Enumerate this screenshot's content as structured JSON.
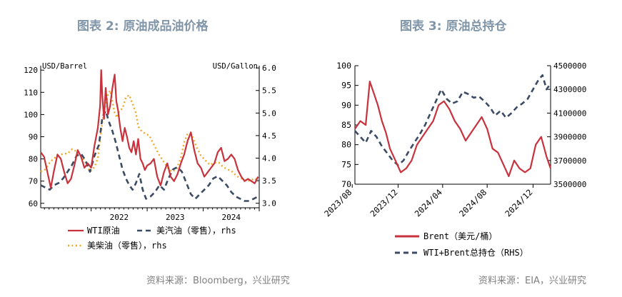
{
  "left": {
    "title": "图表 2:   原油成品油价格",
    "source": "资料来源：Bloomberg，兴业研究"
  },
  "right": {
    "title": "图表 3:   原油总持仓",
    "source": "资料来源：EIA，兴业研究"
  },
  "colors": {
    "wti": "#c8323c",
    "gasoline": "#3c4b64",
    "diesel": "#f0a828",
    "brent": "#c8323c",
    "holdings": "#3c4b64",
    "title": "#8095a8"
  },
  "chart_data": [
    {
      "type": "line",
      "title": "原油成品油价格",
      "y_left_unit": "USD/Barrel",
      "y_right_unit": "USD/Gallon",
      "ylim_left": [
        58,
        122
      ],
      "ylim_right": [
        2.9,
        6.05
      ],
      "y_left_ticks": [
        "120",
        "110",
        "100",
        "90",
        "80",
        "70",
        "60"
      ],
      "y_right_ticks": [
        "6.0",
        "5.5",
        "5.0",
        "4.5",
        "4.0",
        "3.5",
        "3.0"
      ],
      "x_range": [
        2021.1,
        2025.0
      ],
      "x_tick_labels": [
        {
          "label": "2022",
          "x": 2022.0
        },
        {
          "label": "2023",
          "x": 2023.0
        },
        {
          "label": "2024",
          "x": 2024.0
        }
      ],
      "series": [
        {
          "name": "WTI原油",
          "axis": "left",
          "style": "solid",
          "x": [
            2021.1,
            2021.16,
            2021.22,
            2021.28,
            2021.34,
            2021.4,
            2021.46,
            2021.52,
            2021.58,
            2021.64,
            2021.7,
            2021.76,
            2021.82,
            2021.88,
            2021.94,
            2022.0,
            2022.06,
            2022.12,
            2022.16,
            2022.18,
            2022.2,
            2022.23,
            2022.26,
            2022.3,
            2022.34,
            2022.38,
            2022.42,
            2022.45,
            2022.48,
            2022.52,
            2022.56,
            2022.6,
            2022.64,
            2022.68,
            2022.72,
            2022.76,
            2022.8,
            2022.84,
            2022.88,
            2022.92,
            2022.96,
            2023.0,
            2023.06,
            2023.12,
            2023.18,
            2023.24,
            2023.3,
            2023.36,
            2023.42,
            2023.48,
            2023.54,
            2023.6,
            2023.66,
            2023.72,
            2023.78,
            2023.84,
            2023.9,
            2023.96,
            2024.02,
            2024.08,
            2024.14,
            2024.2,
            2024.26,
            2024.32,
            2024.38,
            2024.44,
            2024.5,
            2024.56,
            2024.62,
            2024.68,
            2024.74,
            2024.8,
            2024.86,
            2024.92,
            2024.98
          ],
          "values": [
            83,
            81,
            74,
            67,
            75,
            82,
            80,
            74,
            69,
            71,
            77,
            84,
            81,
            76,
            78,
            76,
            86,
            94,
            104,
            120,
            108,
            98,
            112,
            100,
            104,
            112,
            118,
            106,
            102,
            94,
            88,
            94,
            90,
            85,
            83,
            88,
            82,
            89,
            80,
            78,
            75,
            77,
            78,
            80,
            72,
            68,
            74,
            78,
            72,
            70,
            73,
            78,
            82,
            88,
            92,
            84,
            78,
            76,
            72,
            74,
            76,
            78,
            83,
            85,
            79,
            80,
            82,
            80,
            75,
            72,
            70,
            71,
            70,
            69,
            72
          ]
        },
        {
          "name": "美汽油（零售），rhs",
          "axis": "right",
          "style": "dashed",
          "x": [
            2021.1,
            2021.18,
            2021.26,
            2021.34,
            2021.42,
            2021.5,
            2021.58,
            2021.66,
            2021.74,
            2021.82,
            2021.9,
            2021.98,
            2022.06,
            2022.14,
            2022.2,
            2022.26,
            2022.32,
            2022.38,
            2022.44,
            2022.5,
            2022.56,
            2022.62,
            2022.68,
            2022.74,
            2022.8,
            2022.86,
            2022.92,
            2022.98,
            2023.06,
            2023.14,
            2023.22,
            2023.3,
            2023.38,
            2023.46,
            2023.54,
            2023.62,
            2023.7,
            2023.78,
            2023.86,
            2023.94,
            2024.02,
            2024.1,
            2024.18,
            2024.26,
            2024.34,
            2024.42,
            2024.5,
            2024.58,
            2024.66,
            2024.74,
            2024.82,
            2024.9,
            2024.98
          ],
          "values": [
            3.4,
            3.35,
            3.3,
            3.4,
            3.45,
            3.55,
            3.7,
            3.85,
            4.05,
            4.1,
            3.95,
            3.7,
            4.05,
            4.3,
            4.9,
            5.05,
            4.8,
            4.6,
            4.35,
            4.05,
            3.75,
            3.55,
            3.4,
            3.3,
            3.45,
            3.65,
            3.3,
            3.1,
            3.15,
            3.25,
            3.4,
            3.3,
            3.55,
            3.75,
            3.8,
            3.7,
            3.45,
            3.2,
            3.1,
            3.2,
            3.3,
            3.4,
            3.55,
            3.6,
            3.5,
            3.4,
            3.25,
            3.15,
            3.1,
            3.05,
            3.05,
            3.1,
            3.15
          ]
        },
        {
          "name": "美柴油（零售），rhs",
          "axis": "right",
          "style": "dotted",
          "x": [
            2021.1,
            2021.18,
            2021.26,
            2021.34,
            2021.42,
            2021.5,
            2021.58,
            2021.66,
            2021.74,
            2021.82,
            2021.9,
            2021.98,
            2022.06,
            2022.12,
            2022.18,
            2022.22,
            2022.26,
            2022.3,
            2022.34,
            2022.38,
            2022.42,
            2022.46,
            2022.5,
            2022.56,
            2022.62,
            2022.68,
            2022.74,
            2022.8,
            2022.84,
            2022.9,
            2022.96,
            2023.04,
            2023.12,
            2023.2,
            2023.28,
            2023.36,
            2023.44,
            2023.52,
            2023.6,
            2023.66,
            2023.72,
            2023.8,
            2023.88,
            2023.96,
            2024.04,
            2024.12,
            2024.2,
            2024.28,
            2024.36,
            2024.44,
            2024.52,
            2024.6,
            2024.68,
            2024.76,
            2024.84,
            2024.92,
            2024.98
          ],
          "values": [
            3.7,
            3.75,
            3.9,
            4.0,
            4.05,
            4.1,
            4.1,
            4.2,
            4.15,
            4.05,
            3.9,
            3.7,
            3.8,
            4.0,
            4.6,
            5.0,
            5.2,
            5.4,
            5.5,
            5.25,
            5.0,
            4.9,
            5.05,
            5.1,
            5.35,
            5.4,
            5.2,
            5.0,
            4.7,
            4.6,
            4.55,
            4.5,
            4.3,
            4.1,
            3.95,
            3.8,
            3.7,
            3.75,
            4.0,
            4.35,
            4.55,
            4.5,
            4.25,
            4.05,
            3.95,
            3.85,
            3.9,
            3.9,
            3.8,
            3.75,
            3.7,
            3.6,
            3.55,
            3.5,
            3.5,
            3.55,
            3.5
          ]
        }
      ],
      "legend": [
        {
          "label": "WTI原油",
          "style": "solid"
        },
        {
          "label": "美汽油（零售），rhs",
          "style": "dashed"
        },
        {
          "label": "美柴油（零售），rhs",
          "style": "dotted"
        }
      ]
    },
    {
      "type": "line",
      "title": "原油总持仓",
      "ylim_left": [
        70,
        100
      ],
      "ylim_right": [
        3500000,
        4500000
      ],
      "y_left_ticks": [
        "100",
        "95",
        "90",
        "85",
        "80",
        "75",
        "70"
      ],
      "y_right_ticks": [
        "4500000",
        "4300000",
        "4100000",
        "3900000",
        "3700000",
        "3500000"
      ],
      "x_range": [
        2023.6,
        2025.05
      ],
      "x_tick_labels": [
        {
          "label": "2023/08",
          "x": 2023.58
        },
        {
          "label": "2023/12",
          "x": 2023.92
        },
        {
          "label": "2024/04",
          "x": 2024.25
        },
        {
          "label": "2024/08",
          "x": 2024.58
        },
        {
          "label": "2024/12",
          "x": 2024.92
        }
      ],
      "series": [
        {
          "name": "Brent（美元/桶）",
          "axis": "left",
          "style": "solid",
          "x": [
            2023.6,
            2023.64,
            2023.68,
            2023.71,
            2023.74,
            2023.77,
            2023.8,
            2023.83,
            2023.86,
            2023.9,
            2023.94,
            2023.98,
            2024.02,
            2024.06,
            2024.1,
            2024.14,
            2024.18,
            2024.22,
            2024.26,
            2024.3,
            2024.34,
            2024.38,
            2024.42,
            2024.46,
            2024.5,
            2024.54,
            2024.58,
            2024.62,
            2024.66,
            2024.7,
            2024.74,
            2024.78,
            2024.82,
            2024.86,
            2024.9,
            2024.94,
            2024.98,
            2025.02,
            2025.05
          ],
          "values": [
            84,
            86,
            85,
            96,
            93,
            90,
            86,
            83,
            79,
            76,
            73,
            74,
            76,
            80,
            82,
            84,
            86,
            90,
            91,
            89,
            86,
            84,
            81,
            83,
            85,
            87,
            84,
            79,
            78,
            75,
            72,
            76,
            74,
            73,
            74,
            80,
            82,
            77,
            74
          ]
        },
        {
          "name": "WTI+Brent总持仓（RHS）",
          "axis": "right",
          "style": "dashed",
          "x": [
            2023.6,
            2023.64,
            2023.68,
            2023.72,
            2023.76,
            2023.8,
            2023.84,
            2023.88,
            2023.92,
            2023.96,
            2024.0,
            2024.04,
            2024.08,
            2024.12,
            2024.16,
            2024.2,
            2024.24,
            2024.28,
            2024.32,
            2024.36,
            2024.4,
            2024.44,
            2024.48,
            2024.52,
            2024.56,
            2024.6,
            2024.64,
            2024.68,
            2024.72,
            2024.76,
            2024.8,
            2024.84,
            2024.88,
            2024.92,
            2024.96,
            2024.99,
            2025.02,
            2025.05
          ],
          "values": [
            3950000,
            3900000,
            3850000,
            3950000,
            3900000,
            3820000,
            3760000,
            3700000,
            3660000,
            3700000,
            3780000,
            3850000,
            3920000,
            4000000,
            4100000,
            4200000,
            4300000,
            4220000,
            4180000,
            4200000,
            4280000,
            4260000,
            4230000,
            4240000,
            4200000,
            4150000,
            4080000,
            4120000,
            4060000,
            4100000,
            4150000,
            4180000,
            4220000,
            4300000,
            4380000,
            4420000,
            4300000,
            4350000
          ]
        }
      ],
      "legend": [
        {
          "label": "Brent（美元/桶）",
          "style": "solid"
        },
        {
          "label": "WTI+Brent总持仓（RHS）",
          "style": "dashed"
        }
      ]
    }
  ]
}
